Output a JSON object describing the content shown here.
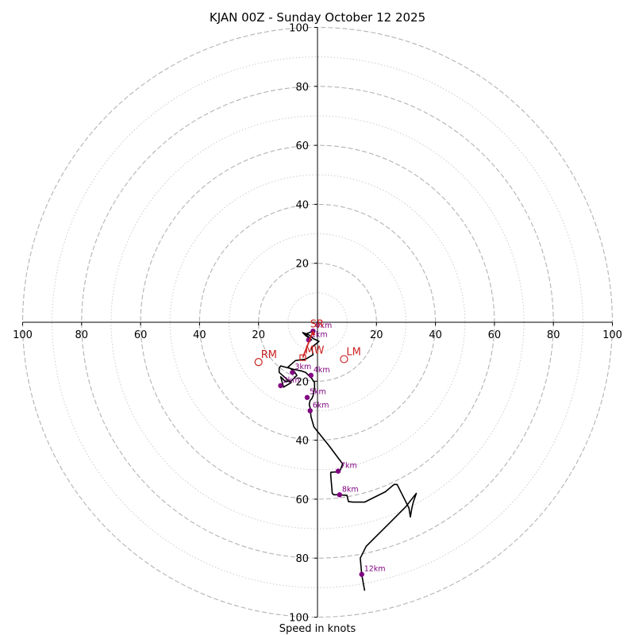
{
  "chart_data": {
    "type": "hodograph",
    "title": "KJAN 00Z - Sunday October 12 2025",
    "xlabel": "Speed in knots",
    "units": "knots",
    "xlim": [
      -100,
      100
    ],
    "ylim": [
      -100,
      100
    ],
    "rings_major": [
      20,
      40,
      60,
      80,
      100
    ],
    "rings_minor": [
      10,
      30,
      50,
      70,
      90
    ],
    "x_ticks": [
      100,
      80,
      60,
      40,
      20,
      0,
      20,
      40,
      60,
      80,
      100
    ],
    "y_ticks": [
      100,
      80,
      60,
      40,
      20,
      0,
      20,
      40,
      60,
      80,
      100
    ],
    "x_ticks_shown": [
      "100",
      "80",
      "60",
      "40",
      "20",
      "20",
      "40",
      "60",
      "80",
      "100"
    ],
    "y_ticks_shown": [
      "100",
      "80",
      "60",
      "40",
      "20",
      "20",
      "40",
      "60",
      "80",
      "100"
    ],
    "trace": [
      [
        -1.5,
        -3
      ],
      [
        -4,
        -4
      ],
      [
        -2,
        -6
      ],
      [
        -4,
        -4.5
      ],
      [
        -5,
        -3.5
      ],
      [
        -3,
        -4.2
      ],
      [
        -1.5,
        -5.5
      ],
      [
        0.5,
        -6.5
      ],
      [
        -2,
        -8.5
      ],
      [
        -1.5,
        -11
      ],
      [
        -4,
        -12.5
      ],
      [
        -7.5,
        -13
      ],
      [
        -10,
        -15.2
      ],
      [
        -8,
        -16.5
      ],
      [
        -7,
        -18
      ],
      [
        -9,
        -20
      ],
      [
        -11,
        -20
      ],
      [
        -12.5,
        -18.5
      ],
      [
        -11.5,
        -22
      ],
      [
        -9,
        -20.5
      ],
      [
        -13,
        -17
      ],
      [
        -13,
        -15.5
      ],
      [
        -12.5,
        -14.8
      ],
      [
        -8,
        -16
      ],
      [
        -5.5,
        -16.5
      ],
      [
        -4,
        -17
      ],
      [
        -2,
        -19
      ],
      [
        -1,
        -20.5
      ],
      [
        -1,
        -22
      ],
      [
        -1.5,
        -25
      ],
      [
        -2,
        -26
      ],
      [
        -2.5,
        -26.5
      ],
      [
        -2.8,
        -28
      ],
      [
        -2.5,
        -29
      ],
      [
        -2.2,
        -32
      ],
      [
        -1.2,
        -35.5
      ],
      [
        4,
        -42
      ],
      [
        7,
        -46
      ],
      [
        8.5,
        -48
      ],
      [
        7.8,
        -50
      ],
      [
        7,
        -50.8
      ],
      [
        5.5,
        -50.8
      ],
      [
        4.5,
        -50.9
      ],
      [
        4.5,
        -52
      ],
      [
        5,
        -58
      ],
      [
        5.5,
        -58.5
      ],
      [
        7.5,
        -58.5
      ],
      [
        8.5,
        -58.6
      ],
      [
        10,
        -58.7
      ],
      [
        10.5,
        -60.8
      ],
      [
        12,
        -61
      ],
      [
        14,
        -61
      ],
      [
        16,
        -61
      ],
      [
        19,
        -59.5
      ],
      [
        23,
        -57.5
      ],
      [
        26,
        -55
      ],
      [
        27,
        -55
      ],
      [
        31,
        -63
      ],
      [
        31.5,
        -66
      ],
      [
        32,
        -63
      ],
      [
        32.5,
        -61
      ],
      [
        33.5,
        -58
      ],
      [
        30,
        -62.5
      ],
      [
        25,
        -67.5
      ],
      [
        20,
        -72.5
      ],
      [
        16.5,
        -76
      ],
      [
        14.5,
        -80
      ],
      [
        15,
        -85.5
      ],
      [
        16,
        -91
      ]
    ],
    "km_markers": [
      {
        "label": "0km",
        "u": -1.5,
        "v": -3
      },
      {
        "label": "1km",
        "u": -3,
        "v": -6
      },
      {
        "label": "2km",
        "u": -12.5,
        "v": -21.5
      },
      {
        "label": "3km",
        "u": -8.5,
        "v": -17
      },
      {
        "label": "4km",
        "u": -2.2,
        "v": -18
      },
      {
        "label": "5km",
        "u": -3.5,
        "v": -25.5
      },
      {
        "label": "6km",
        "u": -2.5,
        "v": -30
      },
      {
        "label": "7km",
        "u": 7,
        "v": -50.5
      },
      {
        "label": "8km",
        "u": 7.5,
        "v": -58.5
      },
      {
        "label": "12km",
        "u": 15,
        "v": -85.5
      }
    ],
    "storm_motion": [
      {
        "label": "RM",
        "u": -20,
        "v": -13.5
      },
      {
        "label": "LM",
        "u": 9,
        "v": -12.5
      },
      {
        "label": "MW",
        "u": -5,
        "v": -12
      }
    ],
    "shear_vector": {
      "from": [
        -5,
        -12
      ],
      "to": [
        -1.5,
        -3
      ]
    },
    "marker_extra_labels": [
      "SR"
    ]
  },
  "colors": {
    "trace": "#000000",
    "km_marker": "#800080",
    "storm_motion": "#cc2222",
    "grid": "#b3b3b3",
    "axes": "#000000"
  }
}
